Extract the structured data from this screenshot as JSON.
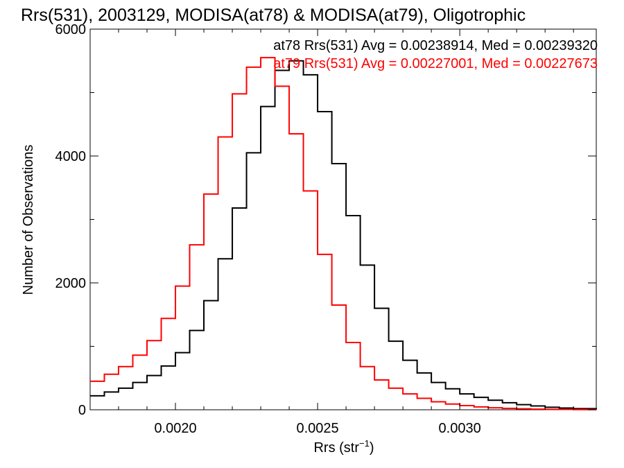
{
  "chart_data": {
    "type": "line",
    "step": true,
    "title": "Rrs(531), 2003129, MODISA(at78) & MODISA(at79), Oligotrophic",
    "xlabel": "Rrs (str",
    "xlabel_sup": "−1",
    "xlabel_close": ")",
    "ylabel": "Number of Observations",
    "xlim": [
      0.0017,
      0.00348
    ],
    "ylim": [
      0,
      6000
    ],
    "x_ticks": [
      {
        "value": 0.002,
        "label": "0.0020"
      },
      {
        "value": 0.0025,
        "label": "0.0025"
      },
      {
        "value": 0.003,
        "label": "0.0030"
      }
    ],
    "y_ticks": [
      {
        "value": 0,
        "label": "0"
      },
      {
        "value": 2000,
        "label": "2000"
      },
      {
        "value": 4000,
        "label": "4000"
      },
      {
        "value": 6000,
        "label": "6000"
      }
    ],
    "grid": false,
    "legend_position": "top-right",
    "series": [
      {
        "name": "at78",
        "color": "#000000",
        "legend_text": "at78 Rrs(531) Avg = 0.00238914, Med = 0.00239320",
        "x": [
          0.0017,
          0.00175,
          0.0018,
          0.00185,
          0.0019,
          0.00195,
          0.002,
          0.00205,
          0.0021,
          0.00215,
          0.0022,
          0.00225,
          0.0023,
          0.00235,
          0.0024,
          0.00245,
          0.0025,
          0.00255,
          0.0026,
          0.00265,
          0.0027,
          0.00275,
          0.0028,
          0.00285,
          0.0029,
          0.00295,
          0.003,
          0.00305,
          0.0031,
          0.00315,
          0.0032,
          0.00325,
          0.0033,
          0.00335,
          0.0034,
          0.00348
        ],
        "y": [
          220,
          280,
          340,
          430,
          540,
          690,
          900,
          1250,
          1720,
          2380,
          3180,
          4050,
          4780,
          5350,
          5500,
          5280,
          4700,
          3880,
          3060,
          2280,
          1600,
          1080,
          780,
          580,
          430,
          330,
          250,
          195,
          150,
          110,
          80,
          60,
          40,
          28,
          18,
          10
        ]
      },
      {
        "name": "at79",
        "color": "#ff0000",
        "legend_text": "at79 Rrs(531) Avg = 0.00227001, Med = 0.00227673",
        "x": [
          0.0017,
          0.00175,
          0.0018,
          0.00185,
          0.0019,
          0.00195,
          0.002,
          0.00205,
          0.0021,
          0.00215,
          0.0022,
          0.00225,
          0.0023,
          0.00235,
          0.0024,
          0.00245,
          0.0025,
          0.00255,
          0.0026,
          0.00265,
          0.0027,
          0.00275,
          0.0028,
          0.00285,
          0.0029,
          0.00295,
          0.003,
          0.00305,
          0.0031,
          0.00315,
          0.0032,
          0.00325,
          0.0033,
          0.00335,
          0.0034,
          0.00348
        ],
        "y": [
          450,
          560,
          680,
          860,
          1090,
          1440,
          1950,
          2600,
          3400,
          4300,
          4980,
          5400,
          5550,
          5100,
          4350,
          3450,
          2450,
          1650,
          1060,
          680,
          470,
          340,
          250,
          180,
          125,
          90,
          65,
          45,
          32,
          22,
          15,
          10,
          7,
          5,
          3,
          2
        ]
      }
    ]
  }
}
